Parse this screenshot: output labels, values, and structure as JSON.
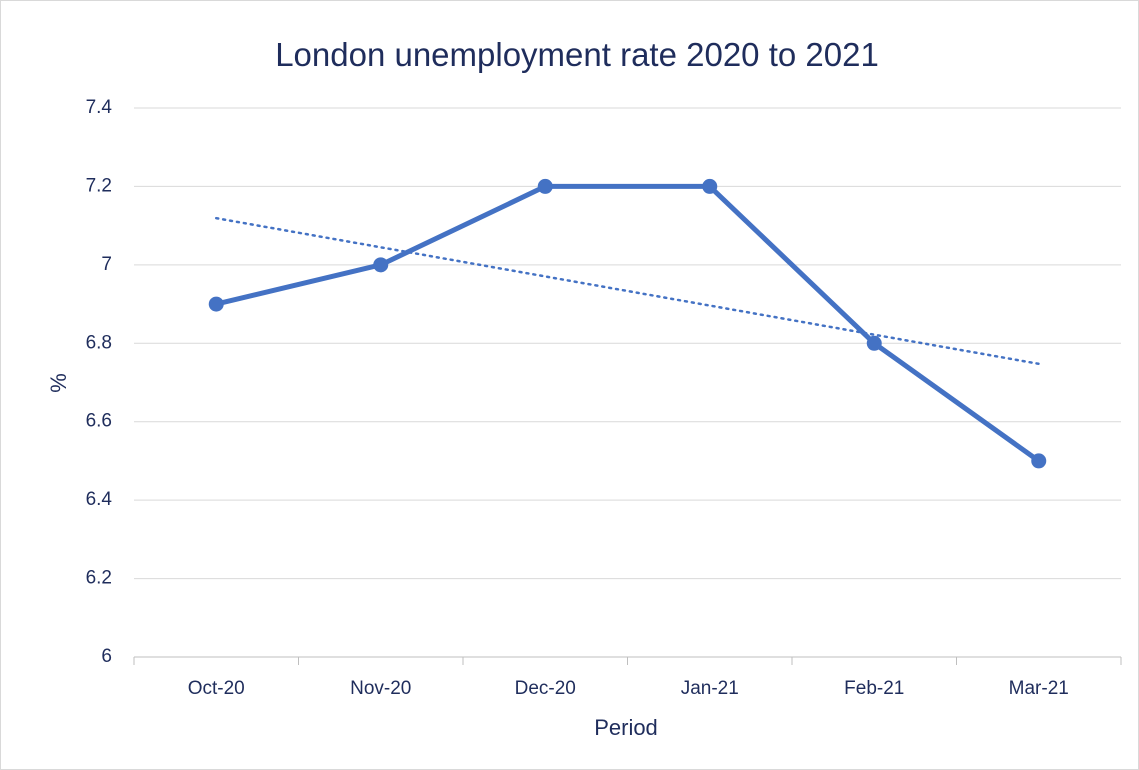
{
  "chart_data": {
    "type": "line",
    "title": "London unemployment rate 2020 to 2021",
    "xlabel": "Period",
    "ylabel": "%",
    "categories": [
      "Oct-20",
      "Nov-20",
      "Dec-20",
      "Jan-21",
      "Feb-21",
      "Mar-21"
    ],
    "series": [
      {
        "values": [
          6.9,
          7.0,
          7.2,
          7.2,
          6.8,
          6.5
        ],
        "color": "#4472c4"
      }
    ],
    "trendline": {
      "type": "linear",
      "style": "dotted",
      "color": "#4472c4"
    },
    "ylim": [
      6,
      7.4
    ],
    "yticks": [
      6,
      6.2,
      6.4,
      6.6,
      6.8,
      7,
      7.2,
      7.4
    ],
    "ytick_labels": [
      "6",
      "6.2",
      "6.4",
      "6.6",
      "6.8",
      "7",
      "7.2",
      "7.4"
    ],
    "grid": true,
    "legend": "none"
  }
}
